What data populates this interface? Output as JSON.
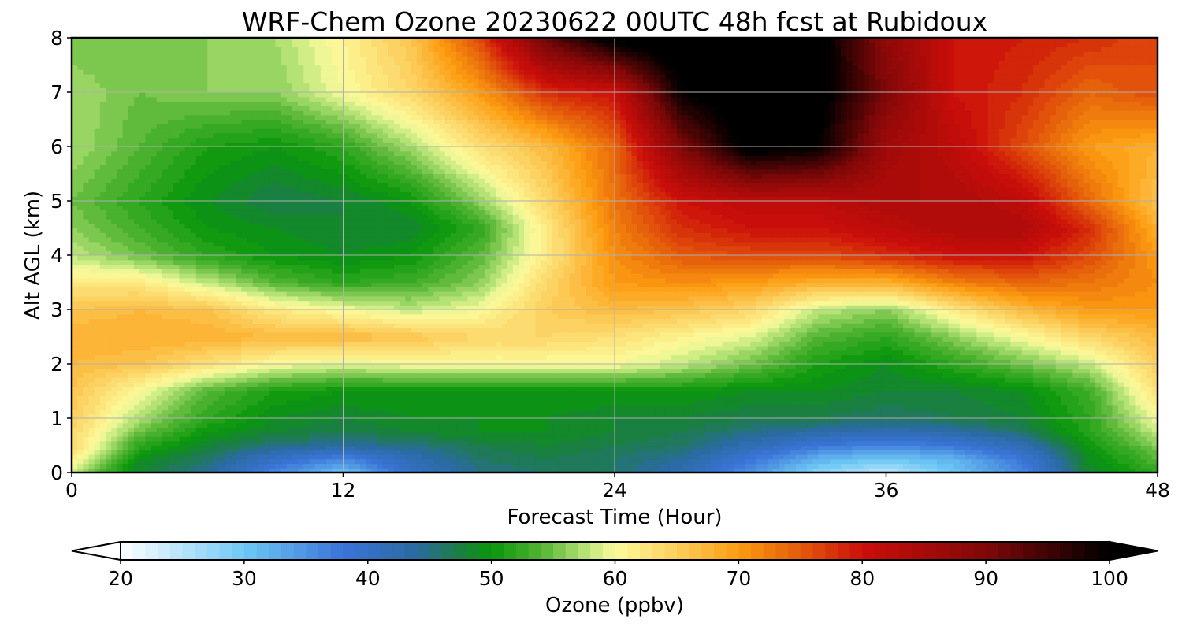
{
  "chart_data": {
    "type": "heatmap",
    "title": "WRF-Chem Ozone  20230622 00UTC 48h fcst at Rubidoux",
    "xlabel": "Forecast Time (Hour)",
    "ylabel": "Alt AGL (km)",
    "xlim": [
      0,
      48
    ],
    "ylim": [
      0,
      8
    ],
    "xticks": [
      0,
      12,
      24,
      36,
      48
    ],
    "yticks": [
      0,
      1,
      2,
      3,
      4,
      5,
      6,
      7,
      8
    ],
    "grid": true,
    "x": [
      0,
      3,
      6,
      9,
      12,
      15,
      18,
      21,
      24,
      27,
      30,
      33,
      36,
      39,
      42,
      45,
      48
    ],
    "y": [
      0,
      0.25,
      0.5,
      0.75,
      1.0,
      1.5,
      2.0,
      2.5,
      3.0,
      3.5,
      4.0,
      4.5,
      5.0,
      6.0,
      7.0,
      8.0
    ],
    "z": [
      [
        58,
        48,
        44,
        36,
        30,
        40,
        45,
        46,
        46,
        42,
        35,
        28,
        24,
        30,
        36,
        48,
        52
      ],
      [
        62,
        49,
        46,
        40,
        36,
        42,
        46,
        47,
        46,
        44,
        38,
        32,
        30,
        32,
        38,
        49,
        54
      ],
      [
        64,
        52,
        48,
        45,
        44,
        45,
        47,
        48,
        47,
        46,
        42,
        38,
        36,
        38,
        42,
        50,
        56
      ],
      [
        64,
        55,
        50,
        48,
        47,
        48,
        49,
        49,
        48,
        47,
        45,
        43,
        42,
        43,
        46,
        52,
        58
      ],
      [
        65,
        57,
        52,
        49,
        48,
        49,
        49,
        49,
        48,
        48,
        47,
        47,
        46,
        47,
        48,
        52,
        60
      ],
      [
        66,
        60,
        54,
        51,
        50,
        50,
        50,
        50,
        50,
        50,
        49,
        49,
        48,
        48,
        49,
        53,
        63
      ],
      [
        67,
        66,
        63,
        60,
        59,
        60,
        60,
        60,
        60,
        58,
        55,
        51,
        49,
        52,
        55,
        58,
        65
      ],
      [
        68,
        68,
        68,
        67,
        67,
        66,
        64,
        64,
        63,
        61,
        59,
        54,
        52,
        56,
        60,
        64,
        67
      ],
      [
        66,
        67,
        66,
        62,
        60,
        58,
        60,
        65,
        67,
        66,
        64,
        58,
        56,
        62,
        67,
        70,
        70
      ],
      [
        62,
        62,
        58,
        54,
        52,
        53,
        56,
        64,
        70,
        71,
        70,
        68,
        68,
        72,
        74,
        73,
        71
      ],
      [
        58,
        55,
        52,
        50,
        49,
        50,
        54,
        62,
        71,
        75,
        76,
        76,
        78,
        80,
        80,
        76,
        70
      ],
      [
        56,
        53,
        50,
        49,
        48,
        48,
        52,
        62,
        72,
        78,
        80,
        80,
        82,
        84,
        84,
        78,
        68
      ],
      [
        55,
        52,
        49,
        47,
        48,
        50,
        56,
        64,
        73,
        80,
        82,
        82,
        84,
        84,
        82,
        74,
        66
      ],
      [
        57,
        54,
        51,
        50,
        52,
        57,
        63,
        67,
        74,
        90,
        102,
        100,
        86,
        82,
        76,
        70,
        68
      ],
      [
        57,
        55,
        56,
        56,
        60,
        64,
        70,
        78,
        80,
        100,
        104,
        102,
        90,
        80,
        78,
        74,
        76
      ],
      [
        55,
        55,
        56,
        57,
        61,
        66,
        76,
        92,
        102,
        104,
        104,
        102,
        88,
        80,
        79,
        78,
        76
      ]
    ],
    "colorbar": {
      "label": "Ozone  (ppbv)",
      "min": 20,
      "max": 100,
      "ticks": [
        20,
        30,
        40,
        50,
        60,
        70,
        80,
        90,
        100
      ],
      "extend": "both",
      "color_stops": [
        [
          20,
          "#ffffff"
        ],
        [
          30,
          "#6ec8f5"
        ],
        [
          38,
          "#3a74d8"
        ],
        [
          44,
          "#2a6aa0"
        ],
        [
          47,
          "#1e7c4c"
        ],
        [
          50,
          "#08960a"
        ],
        [
          54,
          "#52b532"
        ],
        [
          58,
          "#c3e87e"
        ],
        [
          60,
          "#fcfb9c"
        ],
        [
          64,
          "#fcd86a"
        ],
        [
          70,
          "#fc9c10"
        ],
        [
          75,
          "#e45a0a"
        ],
        [
          80,
          "#cc0e0a"
        ],
        [
          90,
          "#800808"
        ],
        [
          100,
          "#000000"
        ]
      ]
    }
  }
}
